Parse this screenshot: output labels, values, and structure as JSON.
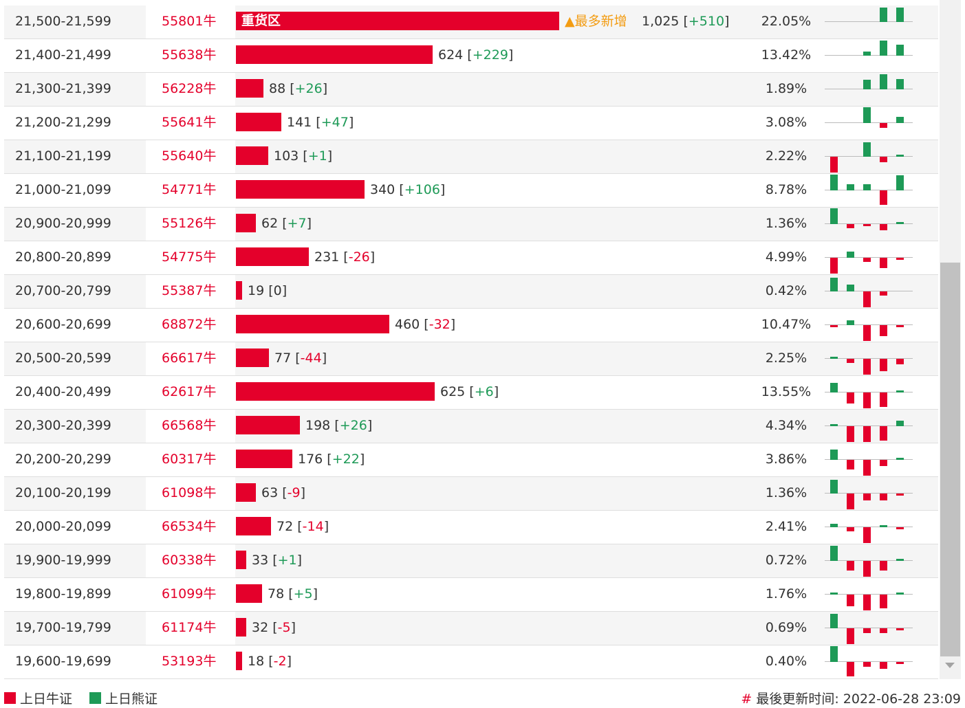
{
  "rows": [
    {
      "range": "21,500-21,599",
      "code": "55801牛",
      "count": "1,025",
      "change": "+510",
      "pct": "22.05%",
      "bar_label": "重货区",
      "hot_label": "▲最多新增",
      "fraction": 0.2205,
      "spark": [
        0,
        0,
        0,
        0.9,
        0.9
      ]
    },
    {
      "range": "21,400-21,499",
      "code": "55638牛",
      "count": "624",
      "change": "+229",
      "pct": "13.42%",
      "fraction": 0.1342,
      "spark": [
        0,
        0,
        0.25,
        0.95,
        0.7
      ]
    },
    {
      "range": "21,300-21,399",
      "code": "56228牛",
      "count": "88",
      "change": "+26",
      "pct": "1.89%",
      "fraction": 0.0189,
      "spark": [
        0,
        0,
        0.6,
        0.95,
        0.65
      ]
    },
    {
      "range": "21,200-21,299",
      "code": "55641牛",
      "count": "141",
      "change": "+47",
      "pct": "3.08%",
      "fraction": 0.0308,
      "spark": [
        0,
        0,
        1.0,
        -0.3,
        0.4
      ]
    },
    {
      "range": "21,100-21,199",
      "code": "55640牛",
      "count": "103",
      "change": "+1",
      "pct": "2.22%",
      "fraction": 0.0222,
      "spark": [
        -1.0,
        0,
        0.9,
        -0.35,
        0.1
      ]
    },
    {
      "range": "21,000-21,099",
      "code": "54771牛",
      "count": "340",
      "change": "+106",
      "pct": "8.78%",
      "fraction": 0.0878,
      "spark": [
        1.0,
        0.4,
        0.4,
        -0.9,
        0.95
      ]
    },
    {
      "range": "20,900-20,999",
      "code": "55126牛",
      "count": "62",
      "change": "+7",
      "pct": "1.36%",
      "fraction": 0.0136,
      "spark": [
        1.0,
        -0.25,
        -0.1,
        -0.4,
        0.1
      ]
    },
    {
      "range": "20,800-20,899",
      "code": "54775牛",
      "count": "231",
      "change": "-26",
      "pct": "4.99%",
      "fraction": 0.0499,
      "spark": [
        -1.0,
        0.4,
        -0.25,
        -0.65,
        -0.15
      ]
    },
    {
      "range": "20,700-20,799",
      "code": "55387牛",
      "count": "19",
      "change": "0",
      "pct": "0.42%",
      "fraction": 0.0042,
      "spark": [
        0.85,
        0.45,
        -1.0,
        -0.25,
        0
      ]
    },
    {
      "range": "20,600-20,699",
      "code": "68872牛",
      "count": "460",
      "change": "-32",
      "pct": "10.47%",
      "fraction": 0.1047,
      "spark": [
        -0.15,
        0.3,
        -1.0,
        -0.7,
        -0.1
      ]
    },
    {
      "range": "20,500-20,599",
      "code": "66617牛",
      "count": "77",
      "change": "-44",
      "pct": "2.25%",
      "fraction": 0.0225,
      "spark": [
        0.1,
        -0.25,
        -1.0,
        -0.8,
        -0.35
      ]
    },
    {
      "range": "20,400-20,499",
      "code": "62617牛",
      "count": "625",
      "change": "+6",
      "pct": "13.55%",
      "fraction": 0.1355,
      "spark": [
        0.6,
        -0.7,
        -1.0,
        -0.9,
        0.1
      ]
    },
    {
      "range": "20,300-20,399",
      "code": "66568牛",
      "count": "198",
      "change": "+26",
      "pct": "4.34%",
      "fraction": 0.0434,
      "spark": [
        0.1,
        -1.0,
        -1.0,
        -0.9,
        0.35
      ]
    },
    {
      "range": "20,200-20,299",
      "code": "60317牛",
      "count": "176",
      "change": "+22",
      "pct": "3.86%",
      "fraction": 0.0386,
      "spark": [
        0.65,
        -0.6,
        -1.0,
        -0.4,
        0.1
      ]
    },
    {
      "range": "20,100-20,199",
      "code": "61098牛",
      "count": "63",
      "change": "-9",
      "pct": "1.36%",
      "fraction": 0.0136,
      "spark": [
        0.85,
        -1.0,
        -0.45,
        -0.45,
        -0.1
      ]
    },
    {
      "range": "20,000-20,099",
      "code": "66534牛",
      "count": "72",
      "change": "-14",
      "pct": "2.41%",
      "fraction": 0.0241,
      "spark": [
        0.2,
        -0.25,
        -1.0,
        0.1,
        -0.1
      ]
    },
    {
      "range": "19,900-19,999",
      "code": "60338牛",
      "count": "33",
      "change": "+1",
      "pct": "0.72%",
      "fraction": 0.0072,
      "spark": [
        0.95,
        -0.6,
        -1.0,
        -0.6,
        0.1
      ]
    },
    {
      "range": "19,800-19,899",
      "code": "61099牛",
      "count": "78",
      "change": "+5",
      "pct": "1.76%",
      "fraction": 0.0176,
      "spark": [
        0.15,
        -0.75,
        -1.0,
        -0.85,
        0.1
      ]
    },
    {
      "range": "19,700-19,799",
      "code": "61174牛",
      "count": "32",
      "change": "-5",
      "pct": "0.69%",
      "fraction": 0.0069,
      "spark": [
        0.9,
        -1.0,
        -0.3,
        -0.3,
        -0.1
      ]
    },
    {
      "range": "19,600-19,699",
      "code": "53193牛",
      "count": "18",
      "change": "-2",
      "pct": "0.40%",
      "fraction": 0.004,
      "spark": [
        1.0,
        -0.9,
        -0.3,
        -0.45,
        -0.1
      ]
    }
  ],
  "legend": {
    "bull_label": "上日牛证",
    "bear_label": "上日熊证"
  },
  "footer": {
    "hash": "#",
    "updated_label": "最後更新时间:",
    "updated_time": "2022-06-28 23:09"
  },
  "colors": {
    "bull": "#e4002b",
    "bear": "#1e9a57",
    "hot": "#f39c12"
  }
}
